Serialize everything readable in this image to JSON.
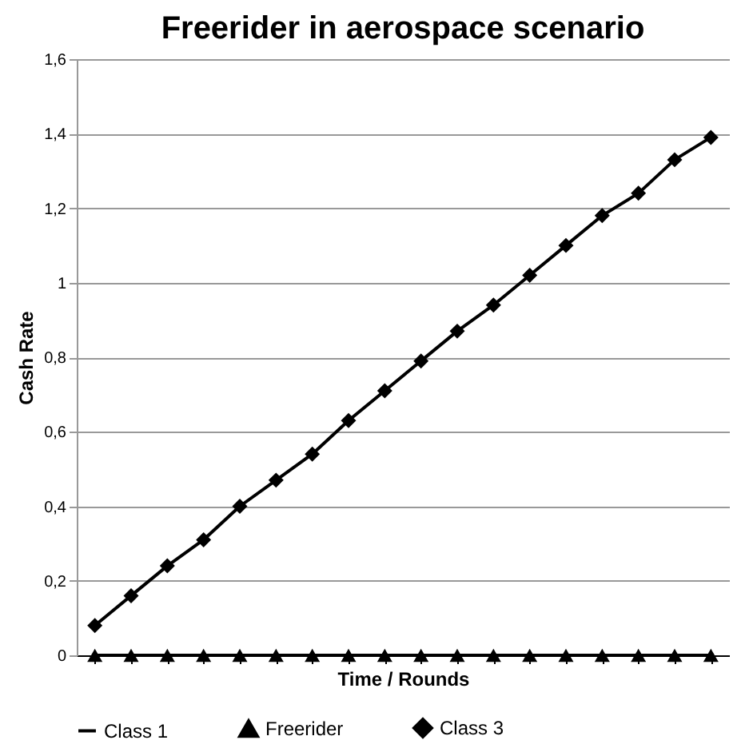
{
  "chart_data": {
    "type": "line",
    "title": "Freerider in aerospace scenario",
    "xlabel": "Time / Rounds",
    "ylabel": "Cash Rate",
    "categories": [
      null,
      null,
      null,
      null,
      null,
      null,
      null,
      null,
      null,
      null,
      null,
      null,
      null,
      null,
      null,
      null,
      null,
      null
    ],
    "series": [
      {
        "name": "Class 1",
        "color": "#000000",
        "marker": "none",
        "values": [
          null,
          null,
          null,
          null,
          null,
          null,
          null,
          null,
          null,
          null,
          null,
          null,
          null,
          null,
          null,
          null,
          null,
          null
        ]
      },
      {
        "name": "Freerider",
        "color": "#000000",
        "marker": "triangle",
        "values": [
          0,
          0,
          0,
          0,
          0,
          0,
          0,
          0,
          0,
          0,
          0,
          0,
          0,
          0,
          0,
          0,
          0,
          0
        ]
      },
      {
        "name": "Class 3",
        "color": "#000000",
        "marker": "diamond",
        "values": [
          0.08,
          0.16,
          0.24,
          0.31,
          0.4,
          0.47,
          0.54,
          0.63,
          0.71,
          0.79,
          0.87,
          0.94,
          1.02,
          1.1,
          1.18,
          1.24,
          1.33,
          1.39
        ]
      }
    ],
    "ylim": [
      0,
      1.6
    ],
    "yticks": [
      0,
      {
        "value": 0.2,
        "label": "0,2"
      },
      {
        "value": 0.4,
        "label": "0,4"
      },
      {
        "value": 0.6,
        "label": "0,6"
      },
      {
        "value": 0.8,
        "label": "0,8"
      },
      1,
      {
        "value": 1.2,
        "label": "1,2"
      },
      {
        "value": 1.4,
        "label": "1,4"
      },
      {
        "value": 1.6,
        "label": "1,6"
      }
    ],
    "grid": "y",
    "legend": "bottom",
    "tick_labels": "y",
    "line_style": "solid"
  }
}
